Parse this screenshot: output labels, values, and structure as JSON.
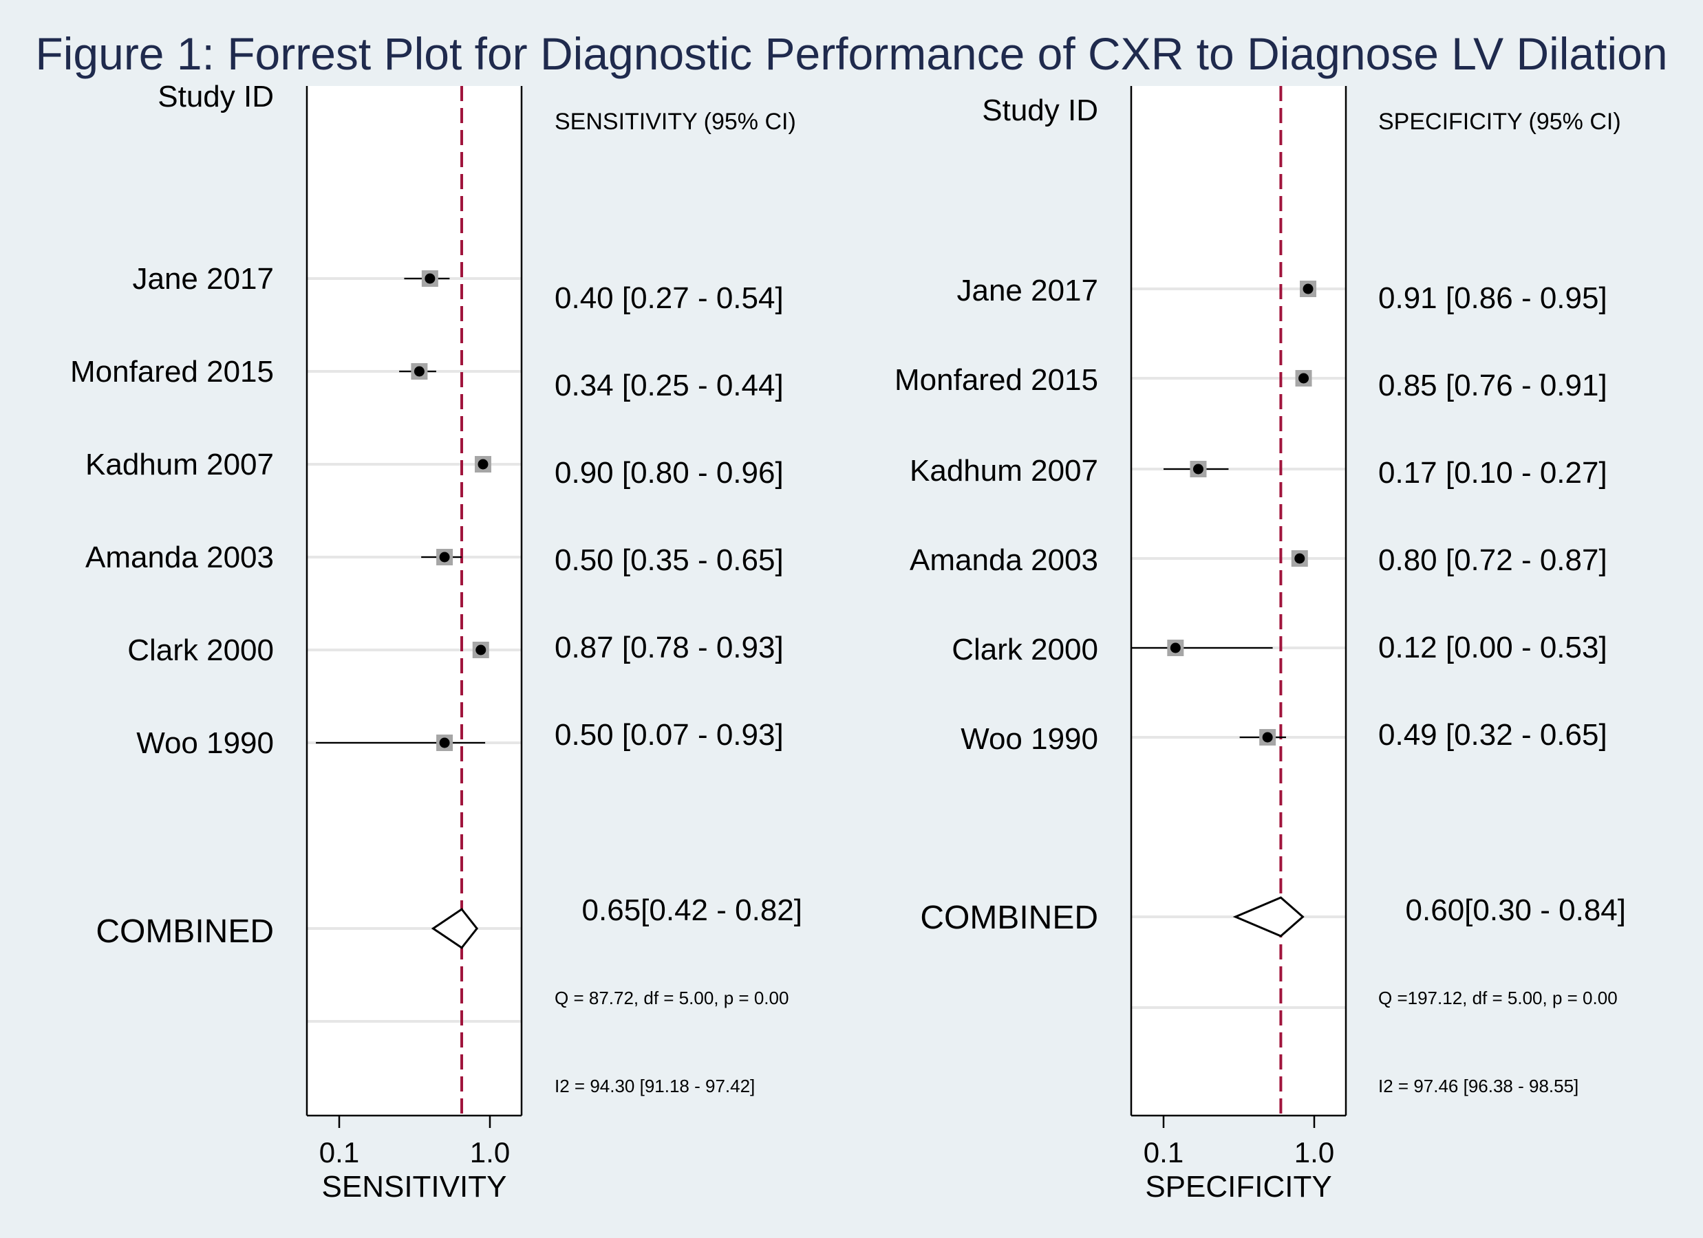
{
  "title": "Figure 1: Forrest Plot for Diagnostic Performance of CXR to Diagnose LV Dilation",
  "colors": {
    "background": "#eaf0f3",
    "title": "#1f2a4d",
    "reference_line": "#a0143c",
    "marker_box": "#a6a6a6",
    "gridline": "#e6e6e6"
  },
  "chart_data": [
    {
      "type": "forest",
      "xscale": "log",
      "ticks": [
        0.1,
        1.0
      ],
      "tick_labels": [
        "0.1",
        "1.0"
      ],
      "xlabel": "SENSITIVITY",
      "id_header": "Study ID",
      "estimate_header": "SENSITIVITY (95% CI)",
      "reference_line": 0.65,
      "studies": [
        {
          "id": "Jane 2017",
          "estimate": 0.4,
          "lower": 0.27,
          "upper": 0.54,
          "label": "0.40 [0.27 - 0.54]"
        },
        {
          "id": "Monfared 2015",
          "estimate": 0.34,
          "lower": 0.25,
          "upper": 0.44,
          "label": "0.34 [0.25 - 0.44]"
        },
        {
          "id": "Kadhum 2007",
          "estimate": 0.9,
          "lower": 0.8,
          "upper": 0.96,
          "label": "0.90 [0.80 - 0.96]"
        },
        {
          "id": "Amanda 2003",
          "estimate": 0.5,
          "lower": 0.35,
          "upper": 0.65,
          "label": "0.50 [0.35 - 0.65]"
        },
        {
          "id": "Clark 2000",
          "estimate": 0.87,
          "lower": 0.78,
          "upper": 0.93,
          "label": "0.87 [0.78 - 0.93]"
        },
        {
          "id": "Woo 1990",
          "estimate": 0.5,
          "lower": 0.07,
          "upper": 0.93,
          "label": "0.50 [0.07 - 0.93]"
        }
      ],
      "combined": {
        "id": "COMBINED",
        "estimate": 0.65,
        "lower": 0.42,
        "upper": 0.82,
        "label": "0.65[0.42 - 0.82]"
      },
      "heterogeneity_q": "Q = 87.72, df = 5.00, p =  0.00",
      "heterogeneity_i2": "I2 = 94.30 [91.18 - 97.42]"
    },
    {
      "type": "forest",
      "xscale": "log",
      "ticks": [
        0.1,
        1.0
      ],
      "tick_labels": [
        "0.1",
        "1.0"
      ],
      "xlabel": "SPECIFICITY",
      "id_header": "Study ID",
      "estimate_header": "SPECIFICITY (95% CI)",
      "reference_line": 0.6,
      "studies": [
        {
          "id": "Jane 2017",
          "estimate": 0.91,
          "lower": 0.86,
          "upper": 0.95,
          "label": "0.91 [0.86 - 0.95]"
        },
        {
          "id": "Monfared 2015",
          "estimate": 0.85,
          "lower": 0.76,
          "upper": 0.91,
          "label": "0.85 [0.76 - 0.91]"
        },
        {
          "id": "Kadhum 2007",
          "estimate": 0.17,
          "lower": 0.1,
          "upper": 0.27,
          "label": "0.17 [0.10 - 0.27]"
        },
        {
          "id": "Amanda 2003",
          "estimate": 0.8,
          "lower": 0.72,
          "upper": 0.87,
          "label": "0.80 [0.72 - 0.87]"
        },
        {
          "id": "Clark 2000",
          "estimate": 0.12,
          "lower": 0.0,
          "upper": 0.53,
          "label": "0.12 [0.00 - 0.53]"
        },
        {
          "id": "Woo 1990",
          "estimate": 0.49,
          "lower": 0.32,
          "upper": 0.65,
          "label": "0.49 [0.32 - 0.65]"
        }
      ],
      "combined": {
        "id": "COMBINED",
        "estimate": 0.6,
        "lower": 0.3,
        "upper": 0.84,
        "label": "0.60[0.30 - 0.84]"
      },
      "heterogeneity_q": "Q =197.12, df = 5.00, p =  0.00",
      "heterogeneity_i2": "I2 = 97.46 [96.38 - 98.55]"
    }
  ]
}
